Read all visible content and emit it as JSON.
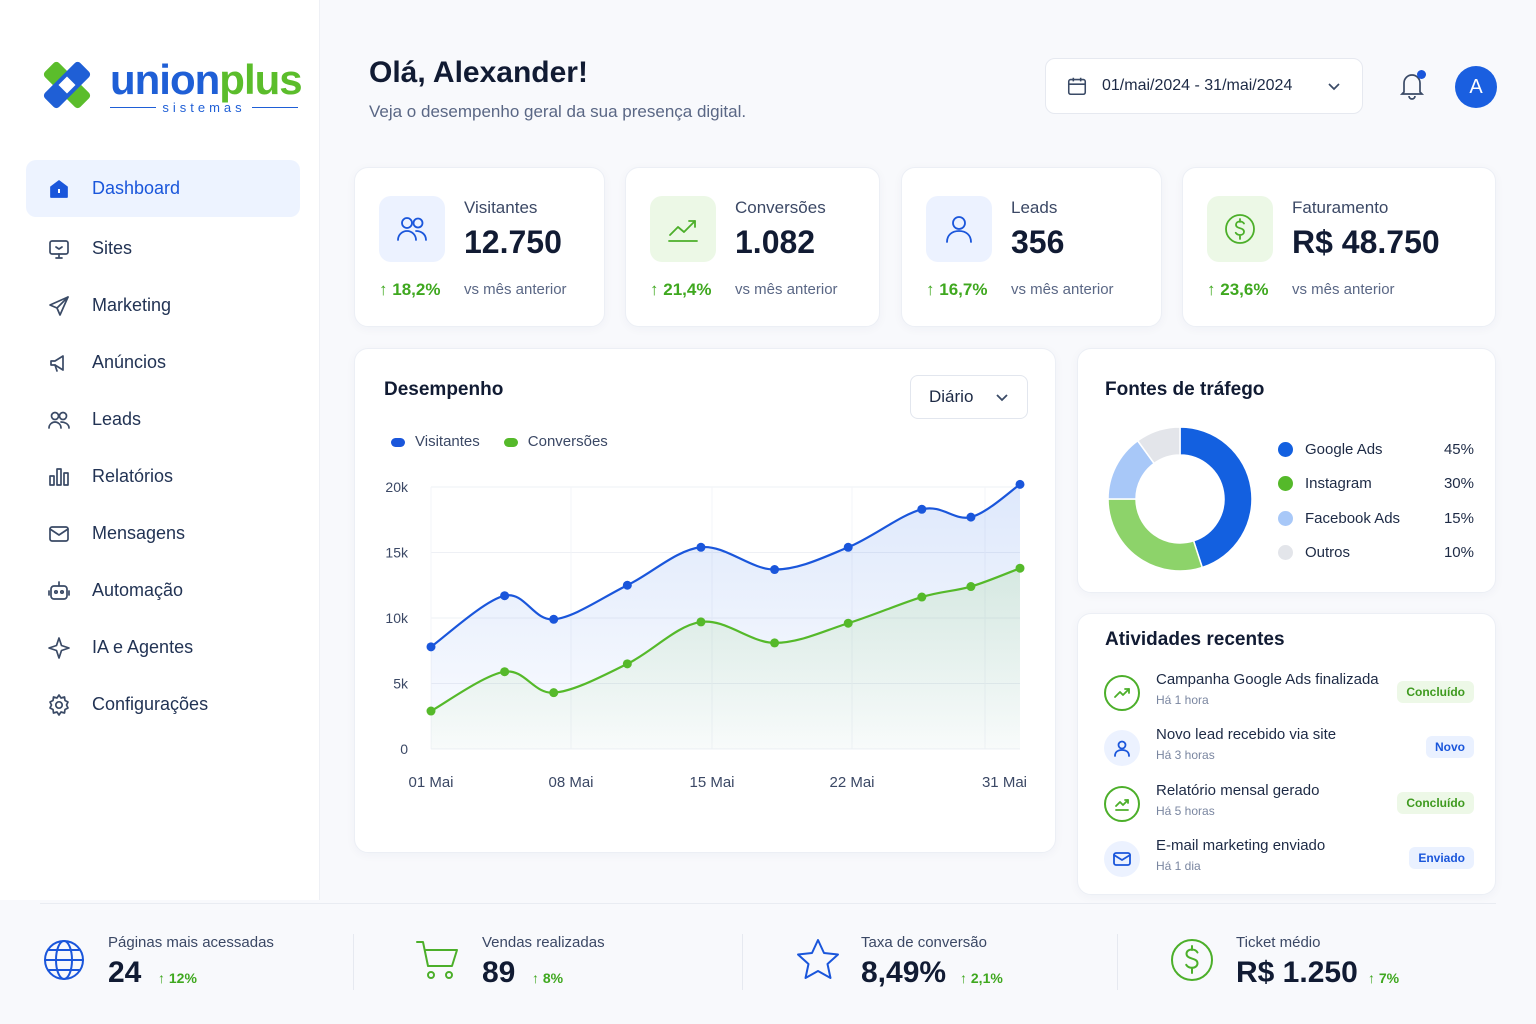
{
  "brand": {
    "name_part1": "union",
    "name_part2": "plus",
    "subtitle": "sistemas"
  },
  "sidebar": {
    "items": [
      {
        "label": "Dashboard",
        "icon": "home-icon",
        "active": true
      },
      {
        "label": "Sites",
        "icon": "monitor-icon"
      },
      {
        "label": "Marketing",
        "icon": "send-icon"
      },
      {
        "label": "Anúncios",
        "icon": "megaphone-icon"
      },
      {
        "label": "Leads",
        "icon": "users-icon"
      },
      {
        "label": "Relatórios",
        "icon": "bar-chart-icon"
      },
      {
        "label": "Mensagens",
        "icon": "mail-icon"
      },
      {
        "label": "Automação",
        "icon": "robot-icon"
      },
      {
        "label": "IA e Agentes",
        "icon": "sparkle-icon"
      },
      {
        "label": "Configurações",
        "icon": "gear-icon"
      }
    ]
  },
  "header": {
    "greeting": "Olá, Alexander!",
    "subtitle": "Veja o desempenho geral da sua presença digital.",
    "date_range": "01/mai/2024 - 31/mai/2024",
    "avatar_initial": "A"
  },
  "kpis": [
    {
      "label": "Visitantes",
      "value": "12.750",
      "delta": "18,2%",
      "vs": "vs mês anterior",
      "icon": "users-icon",
      "tone": "blue"
    },
    {
      "label": "Conversões",
      "value": "1.082",
      "delta": "21,4%",
      "vs": "vs mês anterior",
      "icon": "trend-up-icon",
      "tone": "green"
    },
    {
      "label": "Leads",
      "value": "356",
      "delta": "16,7%",
      "vs": "vs mês anterior",
      "icon": "user-icon",
      "tone": "blue"
    },
    {
      "label": "Faturamento",
      "value": "R$ 48.750",
      "delta": "23,6%",
      "vs": "vs mês anterior",
      "icon": "dollar-icon",
      "tone": "green"
    }
  ],
  "performance": {
    "title": "Desempenho",
    "period": "Diário",
    "legend": [
      "Visitantes",
      "Conversões"
    ]
  },
  "chart_data": {
    "type": "area",
    "title": "Desempenho",
    "x_tick_labels": [
      "01 Mai",
      "08 Mai",
      "15 Mai",
      "22 Mai",
      "31 Mai"
    ],
    "y_tick_labels": [
      "0",
      "5k",
      "10k",
      "15k",
      "20k"
    ],
    "ylim": [
      0,
      20000
    ],
    "grid": true,
    "legend_position": "top-left",
    "series": [
      {
        "name": "Visitantes",
        "color": "#1a56db",
        "points": [
          [
            1,
            7800
          ],
          [
            4,
            11700
          ],
          [
            6,
            9900
          ],
          [
            9,
            12500
          ],
          [
            12,
            15400
          ],
          [
            15,
            13700
          ],
          [
            18,
            15400
          ],
          [
            21,
            18300
          ],
          [
            23,
            17700
          ],
          [
            25,
            20200
          ]
        ]
      },
      {
        "name": "Conversões",
        "color": "#55b92a",
        "points": [
          [
            1,
            2900
          ],
          [
            4,
            5900
          ],
          [
            6,
            4300
          ],
          [
            9,
            6500
          ],
          [
            12,
            9700
          ],
          [
            15,
            8100
          ],
          [
            18,
            9600
          ],
          [
            21,
            11600
          ],
          [
            23,
            12400
          ],
          [
            25,
            13800
          ]
        ]
      }
    ]
  },
  "traffic": {
    "title": "Fontes de tráfego",
    "sources": [
      {
        "name": "Google Ads",
        "pct": "45%",
        "value": 45,
        "color": "#1360e0"
      },
      {
        "name": "Instagram",
        "pct": "30%",
        "value": 30,
        "color": "#8dd36a"
      },
      {
        "name": "Facebook Ads",
        "pct": "15%",
        "value": 15,
        "color": "#a8c8f8"
      },
      {
        "name": "Outros",
        "pct": "10%",
        "value": 10,
        "color": "#e3e5ea"
      }
    ]
  },
  "activities": {
    "title": "Atividades recentes",
    "items": [
      {
        "title": "Campanha Google Ads finalizada",
        "time": "Há 1 hora",
        "badge": "Concluído",
        "tone": "done",
        "icon": "trend-up-icon"
      },
      {
        "title": "Novo lead recebido via site",
        "time": "Há 3 horas",
        "badge": "Novo",
        "tone": "blue",
        "icon": "user-icon"
      },
      {
        "title": "Relatório mensal gerado",
        "time": "Há 5 horas",
        "badge": "Concluído",
        "tone": "done",
        "icon": "trend-up-icon"
      },
      {
        "title": "E-mail marketing enviado",
        "time": "Há 1 dia",
        "badge": "Enviado",
        "tone": "blue",
        "icon": "mail-icon"
      }
    ]
  },
  "bottom_stats": [
    {
      "label": "Páginas mais acessadas",
      "value": "24",
      "delta": "12%",
      "icon": "globe-icon"
    },
    {
      "label": "Vendas realizadas",
      "value": "89",
      "delta": "8%",
      "icon": "cart-icon"
    },
    {
      "label": "Taxa de conversão",
      "value": "8,49%",
      "delta": "2,1%",
      "icon": "star-icon"
    },
    {
      "label": "Ticket médio",
      "value": "R$ 1.250",
      "delta": "7%",
      "icon": "dollar-icon"
    }
  ]
}
